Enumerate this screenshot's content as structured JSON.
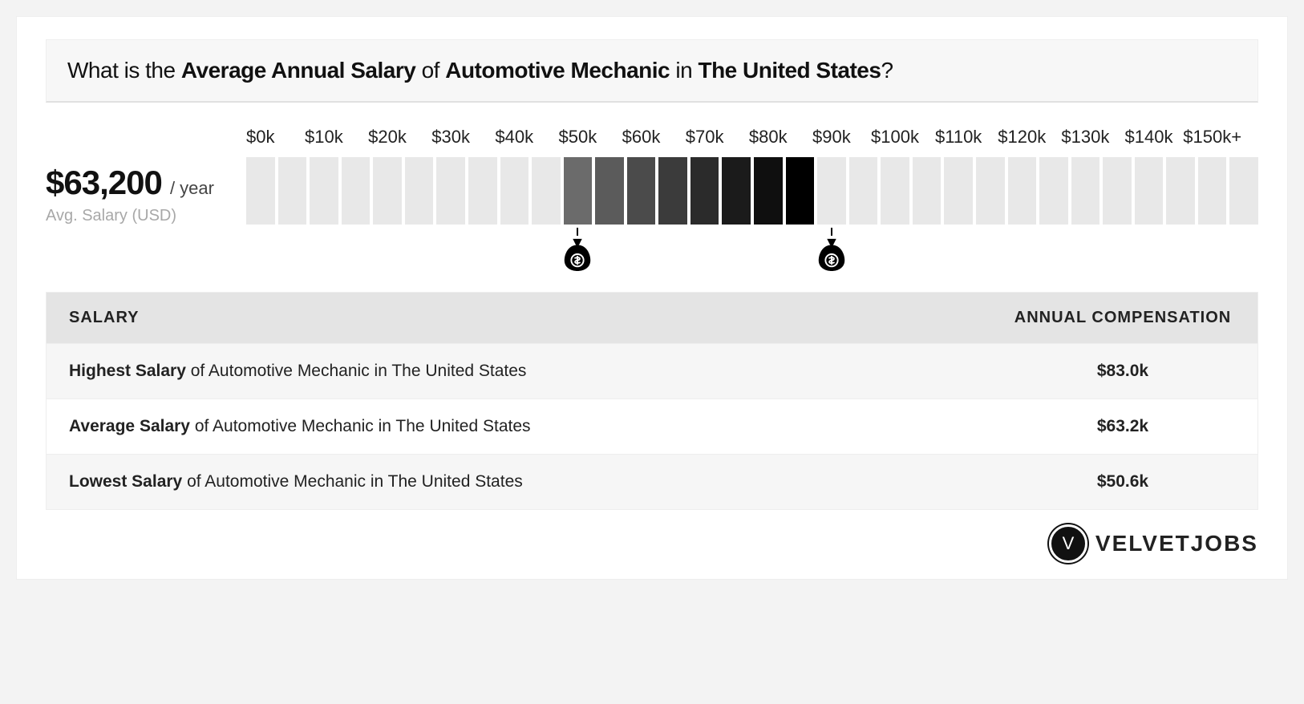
{
  "title": {
    "prefix": "What is the ",
    "b1": "Average Annual Salary",
    "mid1": " of ",
    "b2": "Automotive Mechanic",
    "mid2": " in ",
    "b3": "The United States",
    "suffix": "?"
  },
  "summary": {
    "amount": "$63,200",
    "per": " / year",
    "sub": "Avg. Salary (USD)"
  },
  "chart": {
    "type": "bar-range",
    "num_bars": 32,
    "tick_spacing_bars": 2,
    "tick_labels": [
      "$0k",
      "$10k",
      "$20k",
      "$30k",
      "$40k",
      "$50k",
      "$60k",
      "$70k",
      "$80k",
      "$90k",
      "$100k",
      "$110k",
      "$120k",
      "$130k",
      "$140k",
      "$150k+"
    ],
    "bar_base_color": "#e8e8e8",
    "highlight_start_bar": 10,
    "highlight_end_bar": 17,
    "highlight_gradient": [
      "#6b6b6b",
      "#5b5b5b",
      "#4b4b4b",
      "#3b3b3b",
      "#2b2b2b",
      "#1b1b1b",
      "#0f0f0f",
      "#000000"
    ],
    "marker_low_bar": 10,
    "marker_high_bar": 18,
    "marker_color": "#000000"
  },
  "table": {
    "header_salary": "SALARY",
    "header_comp": "ANNUAL COMPENSATION",
    "rows": [
      {
        "strong": "Highest Salary",
        "rest": " of Automotive Mechanic in The United States",
        "value": "$83.0k"
      },
      {
        "strong": "Average Salary",
        "rest": " of Automotive Mechanic in The United States",
        "value": "$63.2k"
      },
      {
        "strong": "Lowest Salary",
        "rest": " of Automotive Mechanic in The United States",
        "value": "$50.6k"
      }
    ]
  },
  "logo": {
    "badge": "V",
    "text": "VELVETJOBS"
  }
}
